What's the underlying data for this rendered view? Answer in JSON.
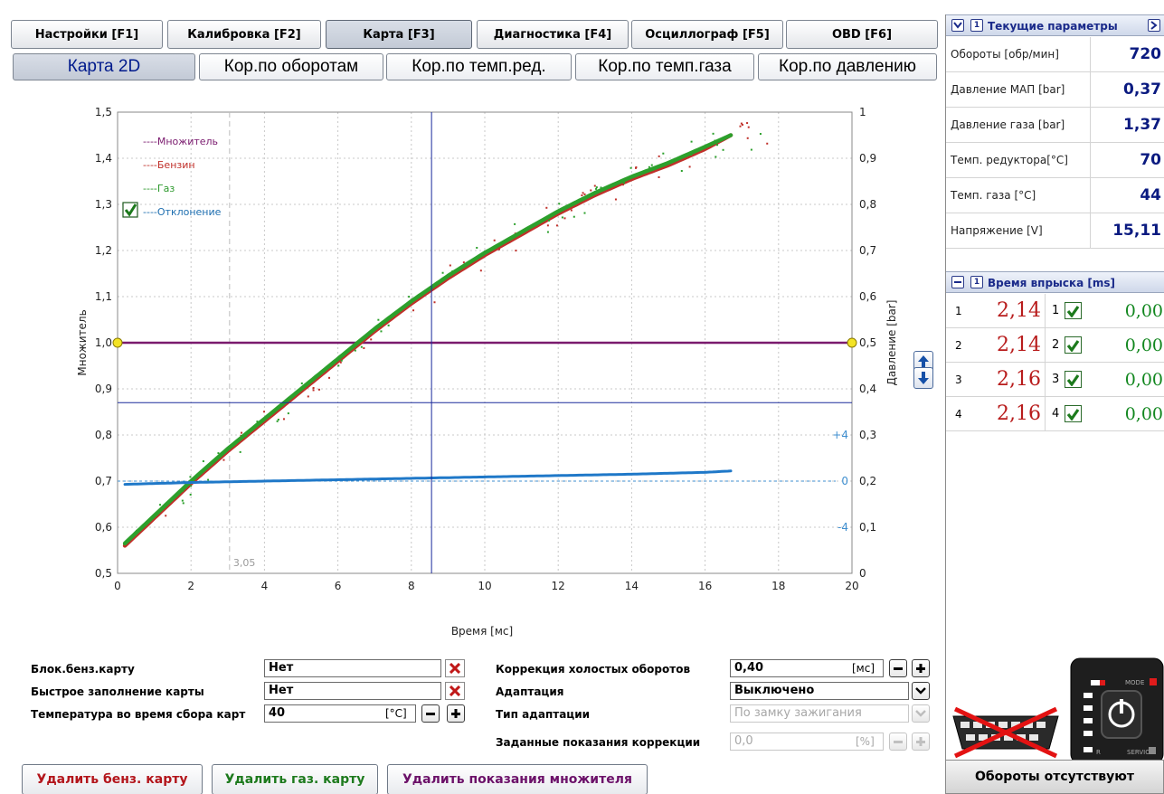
{
  "top_tabs": [
    {
      "label": "Настройки [F1]",
      "active": false
    },
    {
      "label": "Калибровка [F2]",
      "active": false
    },
    {
      "label": "Карта [F3]",
      "active": true
    },
    {
      "label": "Диагностика [F4]",
      "active": false
    },
    {
      "label": "Осциллограф [F5]",
      "active": false
    },
    {
      "label": "OBD [F6]",
      "active": false
    }
  ],
  "sub_tabs": [
    {
      "label": "Карта 2D",
      "active": true
    },
    {
      "label": "Кор.по оборотам",
      "active": false
    },
    {
      "label": "Кор.по темп.ред.",
      "active": false
    },
    {
      "label": "Кор.по темп.газа",
      "active": false
    },
    {
      "label": "Кор.по давлению",
      "active": false
    }
  ],
  "chart_data": {
    "type": "scatter",
    "xlabel": "Время [мс]",
    "ylabel": "Множитель",
    "y2label": "Давление [bar]",
    "xlim": [
      0,
      20
    ],
    "ylim": [
      0.5,
      1.5
    ],
    "y2lim": [
      0,
      1
    ],
    "xticks": [
      "0",
      "2",
      "4",
      "6",
      "8",
      "10",
      "12",
      "14",
      "16",
      "18",
      "20"
    ],
    "yticks": [
      "0,5",
      "0,6",
      "0,7",
      "0,8",
      "0,9",
      "1,0",
      "1,1",
      "1,2",
      "1,3",
      "1,4",
      "1,5"
    ],
    "y2ticks": [
      "0",
      "0,1",
      "0,2",
      "0,3",
      "0,4",
      "0,5",
      "0,6",
      "0,7",
      "0,8",
      "0,9",
      "1"
    ],
    "deviation_ticks": [
      "+4",
      "0",
      "-4"
    ],
    "grid": true,
    "legend_placement": "top-left",
    "legend": [
      {
        "name": "----Множитель",
        "color": "#7a1a6e"
      },
      {
        "name": "----Бензин",
        "color": "#c0302a"
      },
      {
        "name": "----Газ",
        "color": "#2e9a2e"
      },
      {
        "name": "----Отклонение",
        "color": "#1f6fb0"
      }
    ],
    "deviation_checked": true,
    "marker_label": "3,05",
    "marker_x": 3.05,
    "cursor_x": 8.55,
    "cursor_y2": 0.37,
    "multiplier_value": 1.0,
    "series": [
      {
        "name": "Газ",
        "color": "#2ca02c",
        "x": [
          0.2,
          1,
          2,
          3,
          4,
          5,
          6,
          7,
          8,
          9,
          10,
          11,
          12,
          13,
          14,
          15,
          16,
          16.7
        ],
        "y": [
          0.565,
          0.625,
          0.7,
          0.77,
          0.835,
          0.9,
          0.965,
          1.03,
          1.09,
          1.145,
          1.195,
          1.24,
          1.285,
          1.325,
          1.36,
          1.39,
          1.425,
          1.45
        ]
      },
      {
        "name": "Бензин",
        "color": "#c0302a",
        "x": [
          0.2,
          1,
          2,
          3,
          4,
          5,
          6,
          7,
          8,
          9,
          10,
          11,
          12,
          13,
          14,
          15,
          16,
          16.7
        ],
        "y": [
          0.56,
          0.62,
          0.695,
          0.765,
          0.83,
          0.895,
          0.96,
          1.025,
          1.085,
          1.14,
          1.19,
          1.235,
          1.28,
          1.32,
          1.355,
          1.385,
          1.42,
          1.45
        ]
      },
      {
        "name": "Отклонение",
        "color": "#1f78c8",
        "x": [
          0.2,
          2,
          4,
          6,
          8,
          10,
          12,
          14,
          16,
          16.7
        ],
        "y": [
          0.693,
          0.697,
          0.7,
          0.703,
          0.706,
          0.709,
          0.712,
          0.715,
          0.719,
          0.722
        ]
      }
    ]
  },
  "form": {
    "block_petrol_label": "Блок.бенз.карту",
    "block_petrol_value": "Нет",
    "fast_fill_label": "Быстрое заполнение карты",
    "fast_fill_value": "Нет",
    "temp_label": "Температура во время сбора карт",
    "temp_value": "40",
    "temp_unit": "[°C]",
    "idle_corr_label": "Коррекция холостых оборотов",
    "idle_corr_value": "0,40",
    "idle_corr_unit": "[мс]",
    "adapt_label": "Адаптация",
    "adapt_value": "Выключено",
    "adapt_type_label": "Тип адаптации",
    "adapt_type_value": "По замку зажигания",
    "target_corr_label": "Заданные показания коррекции",
    "target_corr_value": "0,0",
    "target_corr_unit": "[%]"
  },
  "buttons": {
    "delete_petrol": "Удалить бенз. карту",
    "delete_gas": "Удалить газ. карту",
    "delete_multiplier": "Удалить показания множителя"
  },
  "params": {
    "header": "Текущие параметры",
    "header_num": "1",
    "rows": [
      {
        "label": "Обороты  [обр/мин]",
        "value": "720"
      },
      {
        "label": "Давление МАП [bar]",
        "value": "0,37"
      },
      {
        "label": "Давление газа [bar]",
        "value": "1,37"
      },
      {
        "label": "Темп. редуктора[°C]",
        "value": "70"
      },
      {
        "label": "Темп. газа        [°C]",
        "value": "44"
      },
      {
        "label": "Напряжение       [V]",
        "value": "15,11"
      }
    ]
  },
  "injection": {
    "header": "Время впрыска [ms]",
    "header_num": "1",
    "rows": [
      {
        "num": "1",
        "petrol": "2,14",
        "gas_num": "1",
        "gas": "0,00"
      },
      {
        "num": "2",
        "petrol": "2,14",
        "gas_num": "2",
        "gas": "0,00"
      },
      {
        "num": "3",
        "petrol": "2,16",
        "gas_num": "3",
        "gas": "0,00"
      },
      {
        "num": "4",
        "petrol": "2,16",
        "gas_num": "4",
        "gas": "0,00"
      }
    ]
  },
  "switch": {
    "mode_label": "MODE",
    "service_label": "SERVICE",
    "r_label": "R"
  },
  "status": "Обороты отсутствуют"
}
